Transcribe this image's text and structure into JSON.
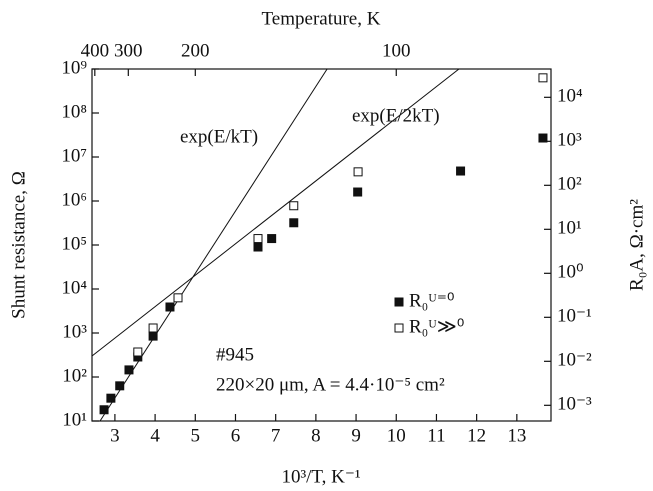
{
  "chart_data": {
    "type": "scatter",
    "x_label": "10³/T, K⁻¹",
    "y_label": "Shunt resistance, Ω",
    "y2_label": "R₀A, Ω·cm²",
    "x2_label": "Temperature, K",
    "xlim": [
      2.43,
      13.85
    ],
    "xticks": [
      3,
      4,
      5,
      6,
      7,
      8,
      9,
      10,
      11,
      12,
      13
    ],
    "x2ticks": [
      400,
      300,
      200,
      100
    ],
    "ylim": [
      10,
      1000000000
    ],
    "log_y": true,
    "yticks": [
      {
        "value": 10,
        "label": "10¹"
      },
      {
        "value": 100,
        "label": "10²"
      },
      {
        "value": 1000,
        "label": "10³"
      },
      {
        "value": 10000,
        "label": "10⁴"
      },
      {
        "value": 100000,
        "label": "10⁵"
      },
      {
        "value": 1000000,
        "label": "10⁶"
      },
      {
        "value": 10000000,
        "label": "10⁷"
      },
      {
        "value": 100000000,
        "label": "10⁸"
      },
      {
        "value": 1000000000,
        "label": "10⁹"
      }
    ],
    "y2lim": [
      0.00044,
      44000
    ],
    "y2ticks": [
      {
        "value": 0.001,
        "label": "10⁻³"
      },
      {
        "value": 0.01,
        "label": "10⁻²"
      },
      {
        "value": 0.1,
        "label": "10⁻¹"
      },
      {
        "value": 1,
        "label": "10⁰"
      },
      {
        "value": 10,
        "label": "10¹"
      },
      {
        "value": 100,
        "label": "10²"
      },
      {
        "value": 1000,
        "label": "10³"
      },
      {
        "value": 10000,
        "label": "10⁴"
      }
    ],
    "legend": "center right",
    "series": [
      {
        "name": "R₀ᵁ⁼⁰",
        "marker": "filled",
        "color": "#111111",
        "x": [
          2.73,
          2.9,
          3.12,
          3.35,
          3.57,
          3.95,
          4.37,
          6.56,
          6.9,
          7.45,
          9.04,
          11.6,
          13.65
        ],
        "values": [
          18,
          33,
          63,
          145,
          285,
          850,
          3900,
          90000,
          140000,
          320000,
          1600000,
          4800000,
          27000000
        ]
      },
      {
        "name": "R₀ᵁ≫⁰",
        "marker": "open",
        "color": "#111111",
        "x": [
          3.57,
          3.95,
          4.57,
          6.56,
          7.45,
          9.05,
          13.65
        ],
        "values": [
          370,
          1300,
          6300,
          140000,
          780000,
          4600000,
          630000000
        ]
      }
    ],
    "fits": [
      {
        "label": "exp(E/kT)",
        "x": [
          2.63,
          8.28
        ],
        "values": [
          10,
          1000000000
        ]
      },
      {
        "label": "exp(E/2kT)",
        "x": [
          2.43,
          11.56
        ],
        "values": [
          300,
          1000000000
        ]
      }
    ],
    "annotations": [
      "#945",
      "220×20 μm, A = 4.4·10⁻⁵ cm²"
    ]
  }
}
